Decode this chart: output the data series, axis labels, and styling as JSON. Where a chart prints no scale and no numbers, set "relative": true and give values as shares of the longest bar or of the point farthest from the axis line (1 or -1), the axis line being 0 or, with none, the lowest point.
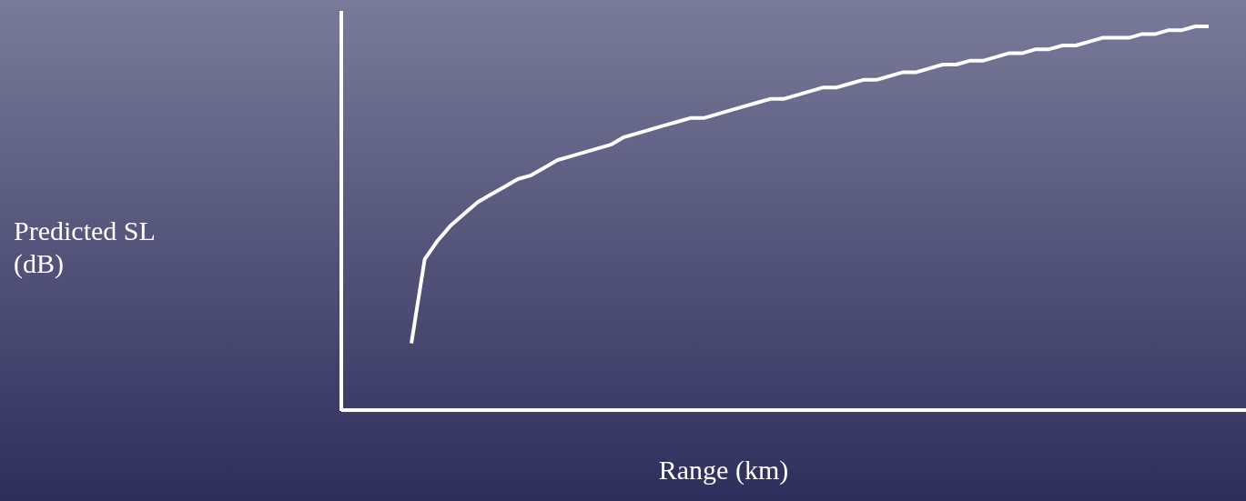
{
  "chart_data": {
    "type": "line",
    "relative": true,
    "line_style": "solid",
    "xlabel": "Range (km)",
    "annotations": [
      "Predicted SL\n(dB)"
    ],
    "categories": [
      null,
      null,
      null,
      null,
      null,
      null,
      null,
      null,
      null,
      null,
      null,
      null,
      null,
      null,
      null,
      null,
      null,
      null,
      null,
      null,
      null,
      null,
      null,
      null,
      null,
      null,
      null,
      null,
      null,
      null,
      null,
      null,
      null,
      null,
      null,
      null,
      null,
      null,
      null,
      null,
      null,
      null,
      null,
      null,
      null,
      null,
      null,
      null,
      null,
      null,
      null,
      null,
      null,
      null,
      null,
      null,
      null,
      null,
      null,
      null,
      null
    ],
    "series": [
      {
        "color": "#ffffff",
        "values": [
          0.17,
          0.39,
          0.44,
          0.48,
          0.51,
          0.54,
          0.56,
          0.58,
          0.6,
          0.61,
          0.63,
          0.65,
          0.66,
          0.67,
          0.68,
          0.69,
          0.71,
          0.72,
          0.73,
          0.74,
          0.75,
          0.76,
          0.76,
          0.77,
          0.78,
          0.79,
          0.8,
          0.81,
          0.81,
          0.82,
          0.83,
          0.84,
          0.84,
          0.85,
          0.86,
          0.86,
          0.87,
          0.88,
          0.88,
          0.89,
          0.9,
          0.9,
          0.91,
          0.91,
          0.92,
          0.93,
          0.93,
          0.94,
          0.94,
          0.95,
          0.95,
          0.96,
          0.97,
          0.97,
          0.97,
          0.98,
          0.98,
          0.99,
          0.99,
          1.0,
          1.0
        ]
      }
    ]
  }
}
